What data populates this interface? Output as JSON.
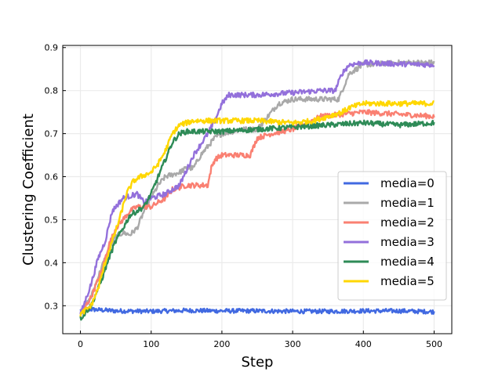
{
  "chart_data": {
    "type": "line",
    "xlabel": "Step",
    "ylabel": "Clustering Coefficient",
    "xlim": [
      -25,
      525
    ],
    "ylim": [
      0.235,
      0.905
    ],
    "xticks": [
      0,
      100,
      200,
      300,
      400,
      500
    ],
    "xtick_labels": [
      "0",
      "100",
      "200",
      "300",
      "400",
      "500"
    ],
    "yticks": [
      0.3,
      0.4,
      0.5,
      0.6,
      0.7,
      0.8,
      0.9
    ],
    "ytick_labels": [
      "0.3",
      "0.4",
      "0.5",
      "0.6",
      "0.7",
      "0.8",
      "0.9"
    ],
    "grid": true,
    "legend_position": "lower-right",
    "series": [
      {
        "name": "media=0",
        "color": "#4169e1",
        "noise": 0.005,
        "points": [
          [
            0,
            0.29
          ],
          [
            10,
            0.292
          ],
          [
            50,
            0.288
          ],
          [
            100,
            0.287
          ],
          [
            150,
            0.289
          ],
          [
            200,
            0.288
          ],
          [
            250,
            0.288
          ],
          [
            300,
            0.287
          ],
          [
            350,
            0.287
          ],
          [
            400,
            0.288
          ],
          [
            450,
            0.288
          ],
          [
            500,
            0.286
          ]
        ]
      },
      {
        "name": "media=1",
        "color": "#a9a9a9",
        "noise": 0.006,
        "points": [
          [
            0,
            0.28
          ],
          [
            15,
            0.32
          ],
          [
            30,
            0.39
          ],
          [
            40,
            0.43
          ],
          [
            50,
            0.46
          ],
          [
            60,
            0.47
          ],
          [
            70,
            0.465
          ],
          [
            80,
            0.48
          ],
          [
            90,
            0.52
          ],
          [
            100,
            0.55
          ],
          [
            110,
            0.58
          ],
          [
            120,
            0.6
          ],
          [
            140,
            0.61
          ],
          [
            150,
            0.62
          ],
          [
            160,
            0.62
          ],
          [
            170,
            0.65
          ],
          [
            180,
            0.67
          ],
          [
            190,
            0.69
          ],
          [
            200,
            0.7
          ],
          [
            230,
            0.71
          ],
          [
            250,
            0.71
          ],
          [
            260,
            0.73
          ],
          [
            270,
            0.75
          ],
          [
            280,
            0.77
          ],
          [
            300,
            0.78
          ],
          [
            350,
            0.78
          ],
          [
            365,
            0.78
          ],
          [
            380,
            0.84
          ],
          [
            400,
            0.86
          ],
          [
            450,
            0.865
          ],
          [
            500,
            0.865
          ]
        ]
      },
      {
        "name": "media=2",
        "color": "#fa8072",
        "noise": 0.006,
        "points": [
          [
            0,
            0.28
          ],
          [
            15,
            0.32
          ],
          [
            30,
            0.38
          ],
          [
            40,
            0.44
          ],
          [
            50,
            0.48
          ],
          [
            60,
            0.5
          ],
          [
            70,
            0.52
          ],
          [
            80,
            0.53
          ],
          [
            100,
            0.53
          ],
          [
            110,
            0.54
          ],
          [
            120,
            0.55
          ],
          [
            130,
            0.57
          ],
          [
            150,
            0.58
          ],
          [
            180,
            0.58
          ],
          [
            185,
            0.62
          ],
          [
            190,
            0.64
          ],
          [
            200,
            0.65
          ],
          [
            240,
            0.65
          ],
          [
            250,
            0.69
          ],
          [
            270,
            0.7
          ],
          [
            300,
            0.71
          ],
          [
            340,
            0.74
          ],
          [
            400,
            0.75
          ],
          [
            450,
            0.745
          ],
          [
            500,
            0.74
          ]
        ]
      },
      {
        "name": "media=3",
        "color": "#9370db",
        "noise": 0.006,
        "points": [
          [
            0,
            0.28
          ],
          [
            15,
            0.35
          ],
          [
            25,
            0.41
          ],
          [
            35,
            0.45
          ],
          [
            45,
            0.52
          ],
          [
            55,
            0.54
          ],
          [
            60,
            0.55
          ],
          [
            80,
            0.56
          ],
          [
            90,
            0.54
          ],
          [
            100,
            0.55
          ],
          [
            120,
            0.56
          ],
          [
            140,
            0.58
          ],
          [
            160,
            0.65
          ],
          [
            180,
            0.7
          ],
          [
            190,
            0.73
          ],
          [
            200,
            0.77
          ],
          [
            210,
            0.79
          ],
          [
            250,
            0.79
          ],
          [
            300,
            0.795
          ],
          [
            340,
            0.8
          ],
          [
            360,
            0.8
          ],
          [
            370,
            0.84
          ],
          [
            380,
            0.86
          ],
          [
            400,
            0.865
          ],
          [
            450,
            0.862
          ],
          [
            500,
            0.86
          ]
        ]
      },
      {
        "name": "media=4",
        "color": "#2e8b57",
        "noise": 0.006,
        "points": [
          [
            0,
            0.27
          ],
          [
            15,
            0.3
          ],
          [
            30,
            0.36
          ],
          [
            40,
            0.41
          ],
          [
            50,
            0.45
          ],
          [
            60,
            0.48
          ],
          [
            70,
            0.51
          ],
          [
            80,
            0.52
          ],
          [
            90,
            0.53
          ],
          [
            100,
            0.56
          ],
          [
            110,
            0.6
          ],
          [
            120,
            0.64
          ],
          [
            130,
            0.68
          ],
          [
            140,
            0.7
          ],
          [
            150,
            0.705
          ],
          [
            200,
            0.705
          ],
          [
            250,
            0.71
          ],
          [
            300,
            0.715
          ],
          [
            350,
            0.72
          ],
          [
            400,
            0.725
          ],
          [
            450,
            0.72
          ],
          [
            500,
            0.725
          ]
        ]
      },
      {
        "name": "media=5",
        "color": "#ffd700",
        "noise": 0.006,
        "points": [
          [
            0,
            0.28
          ],
          [
            15,
            0.3
          ],
          [
            25,
            0.34
          ],
          [
            35,
            0.4
          ],
          [
            45,
            0.45
          ],
          [
            55,
            0.5
          ],
          [
            65,
            0.56
          ],
          [
            75,
            0.59
          ],
          [
            85,
            0.6
          ],
          [
            100,
            0.61
          ],
          [
            110,
            0.63
          ],
          [
            120,
            0.66
          ],
          [
            130,
            0.7
          ],
          [
            140,
            0.72
          ],
          [
            160,
            0.73
          ],
          [
            200,
            0.73
          ],
          [
            250,
            0.73
          ],
          [
            300,
            0.725
          ],
          [
            330,
            0.73
          ],
          [
            350,
            0.74
          ],
          [
            370,
            0.75
          ],
          [
            380,
            0.76
          ],
          [
            400,
            0.77
          ],
          [
            450,
            0.77
          ],
          [
            500,
            0.77
          ]
        ]
      }
    ]
  }
}
